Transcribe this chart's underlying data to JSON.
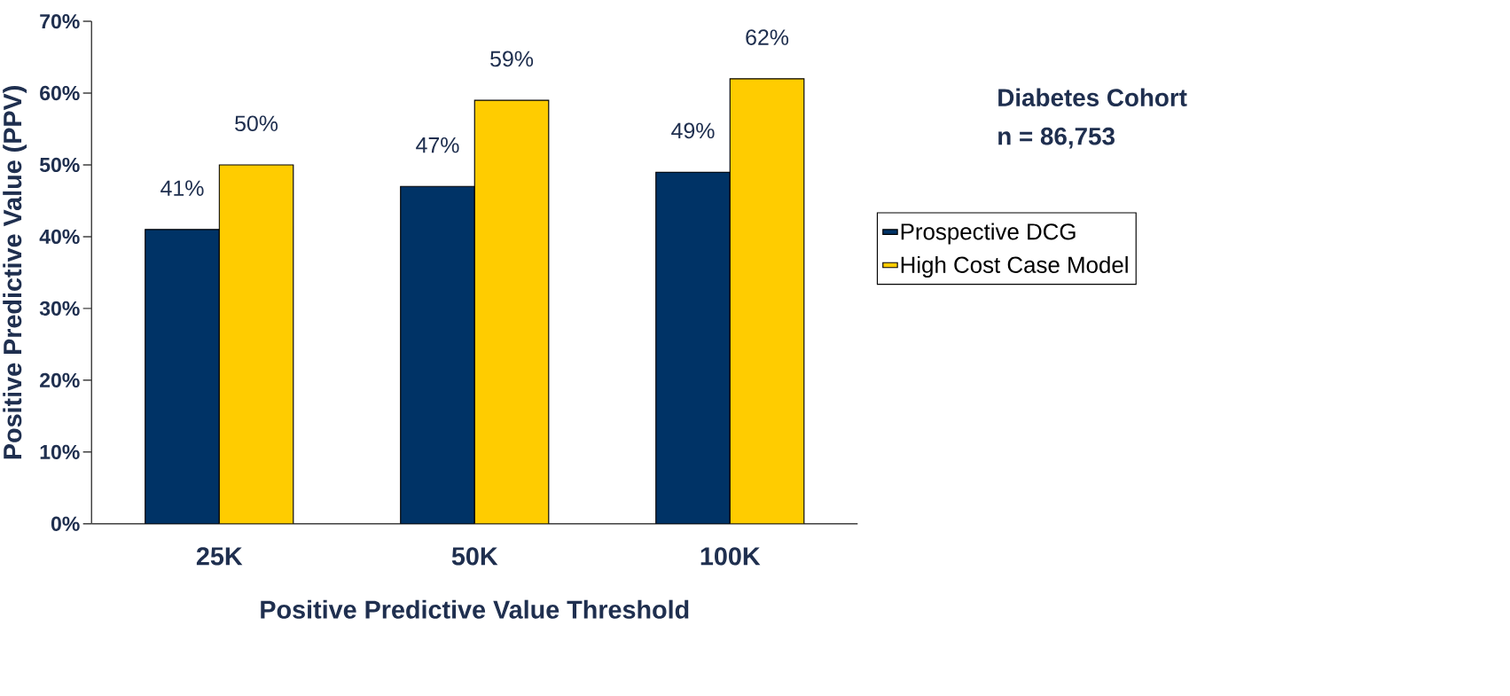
{
  "chart_data": {
    "type": "bar",
    "xlabel": "Positive Predictive Value Threshold",
    "ylabel": "Positive Predictive Value (PPV)",
    "categories": [
      "25K",
      "50K",
      "100K"
    ],
    "series": [
      {
        "name": "Prospective DCG",
        "color": "#003366",
        "values": [
          41,
          47,
          49
        ],
        "value_labels": [
          "41%",
          "47%",
          "49%"
        ]
      },
      {
        "name": "High Cost Case Model",
        "color": "#ffcc00",
        "values": [
          50,
          59,
          62
        ],
        "value_labels": [
          "50%",
          "59%",
          "62%"
        ]
      }
    ],
    "ylim": [
      0,
      70
    ],
    "yticks": [
      {
        "value": 0,
        "label": "0%"
      },
      {
        "value": 10,
        "label": "10%"
      },
      {
        "value": 20,
        "label": "20%"
      },
      {
        "value": 30,
        "label": "30%"
      },
      {
        "value": 40,
        "label": "40%"
      },
      {
        "value": 50,
        "label": "50%"
      },
      {
        "value": 60,
        "label": "60%"
      },
      {
        "value": 70,
        "label": "70%"
      }
    ],
    "legend": "right",
    "annotations": [
      "Diabetes Cohort",
      "n = 86,753"
    ]
  }
}
